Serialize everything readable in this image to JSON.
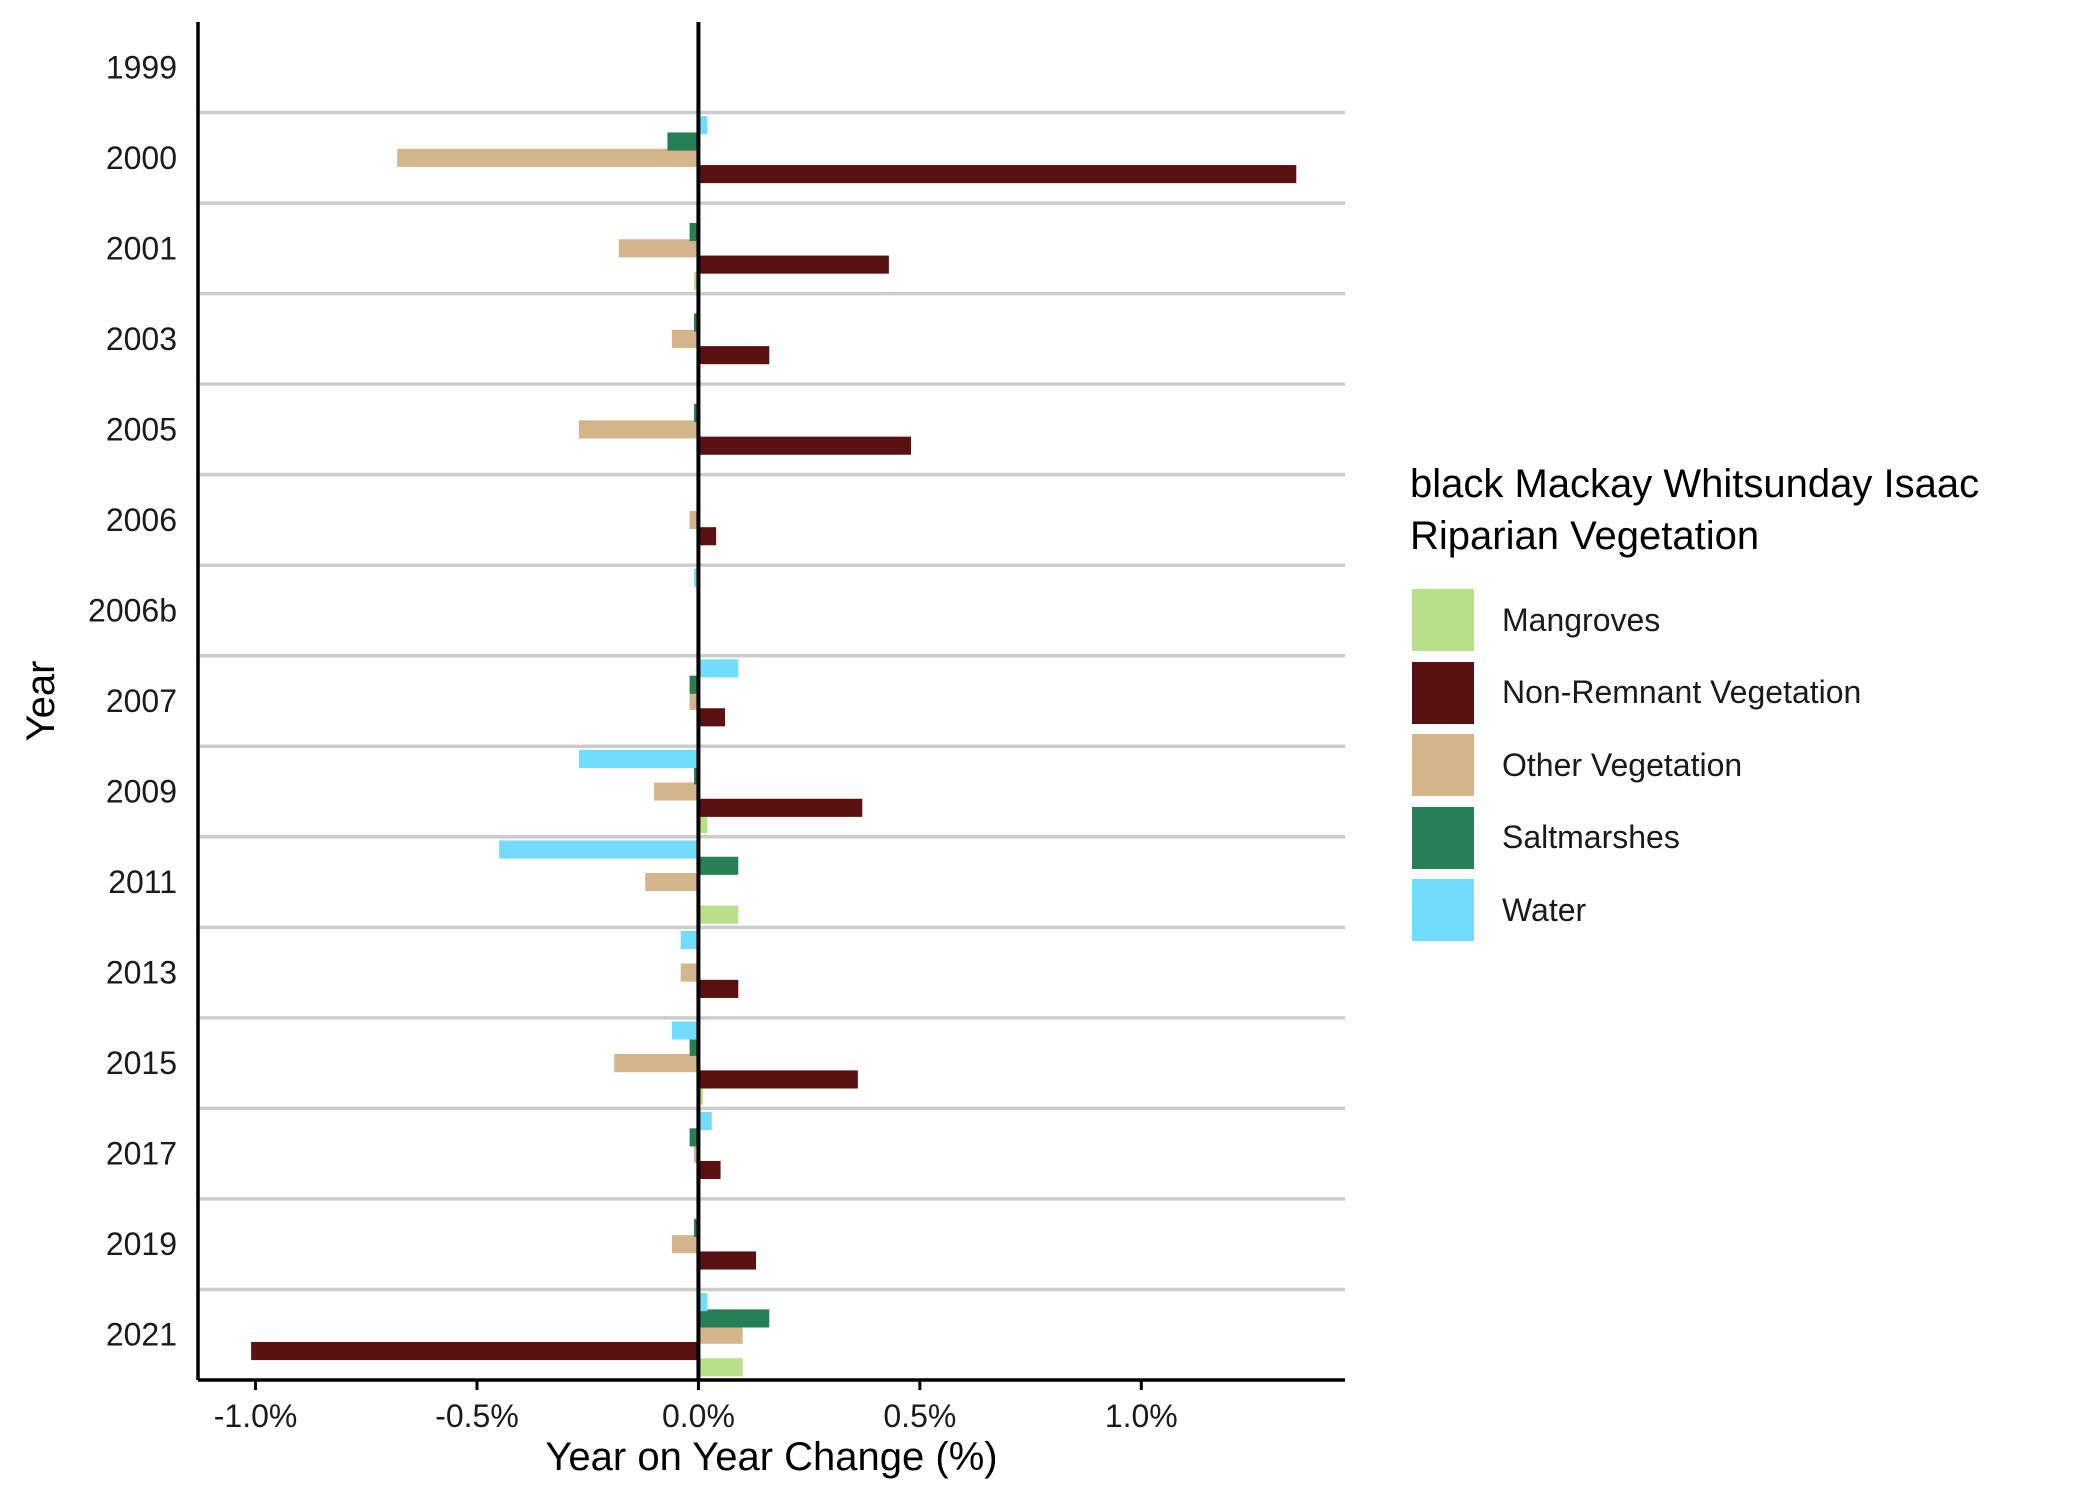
{
  "chart_data": {
    "type": "bar",
    "orientation": "horizontal",
    "categories": [
      "1999",
      "2000",
      "2001",
      "2003",
      "2005",
      "2006",
      "2006b",
      "2007",
      "2009",
      "2011",
      "2013",
      "2015",
      "2017",
      "2019",
      "2021"
    ],
    "series": [
      {
        "name": "Mangroves",
        "color": "#b8e08a",
        "values": [
          0,
          0.0,
          -0.01,
          0.0,
          0.0,
          0.0,
          0.0,
          0.0,
          0.02,
          0.09,
          0.0,
          0.01,
          0.0,
          0.0,
          0.1
        ]
      },
      {
        "name": "Non-Remnant Vegetation",
        "color": "#5a1111",
        "values": [
          0,
          1.35,
          0.43,
          0.16,
          0.48,
          0.04,
          0.0,
          0.06,
          0.37,
          0.0,
          0.09,
          0.36,
          0.05,
          0.13,
          -1.01
        ]
      },
      {
        "name": "Other Vegetation",
        "color": "#d4b48a",
        "values": [
          0,
          -0.68,
          -0.18,
          -0.06,
          -0.27,
          -0.02,
          0.0,
          -0.02,
          -0.1,
          -0.12,
          -0.04,
          -0.19,
          -0.01,
          -0.06,
          0.1
        ]
      },
      {
        "name": "Saltmarshes",
        "color": "#278055",
        "values": [
          0,
          -0.07,
          -0.02,
          -0.01,
          -0.01,
          0.0,
          0.0,
          -0.02,
          -0.01,
          0.09,
          0.0,
          -0.02,
          -0.02,
          -0.01,
          0.16
        ]
      },
      {
        "name": "Water",
        "color": "#72dcff",
        "values": [
          0,
          0.02,
          0.0,
          0.0,
          0.0,
          0.0,
          -0.01,
          0.09,
          -0.27,
          -0.45,
          -0.04,
          -0.06,
          0.03,
          0.0,
          0.02
        ]
      }
    ],
    "xlim": [
      -1.13,
      1.46
    ],
    "xticks": [
      -1.0,
      -0.5,
      0.0,
      0.5,
      1.0
    ],
    "xtick_labels": [
      "-1.0%",
      "-0.5%",
      "0.0%",
      "0.5%",
      "1.0%"
    ],
    "xlabel": "Year on Year Change (%)",
    "ylabel": "Year",
    "legend_title": "black Mackay Whitsunday Isaac Riparian Vegetation",
    "legend_title_lines": [
      "black Mackay Whitsunday Isaac",
      "Riparian Vegetation"
    ],
    "legend_position": "right",
    "grid": "horizontal separators between years",
    "zero_line": true
  }
}
